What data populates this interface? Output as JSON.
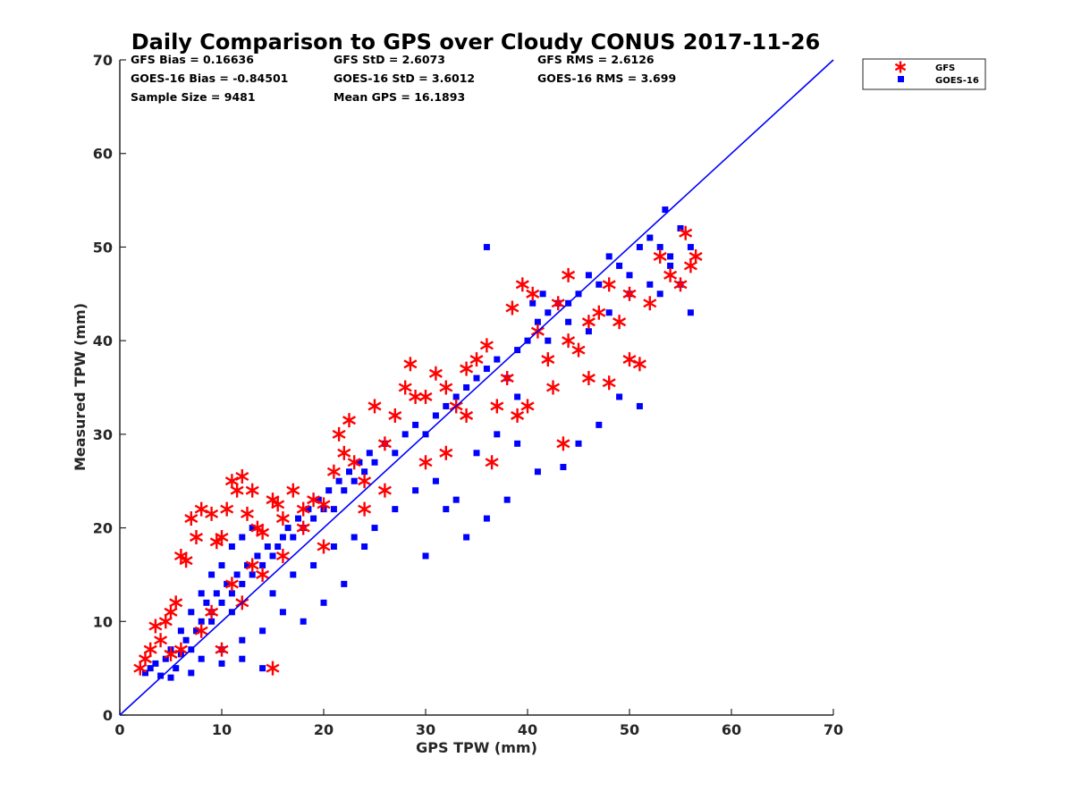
{
  "chart_data": {
    "type": "scatter",
    "title": "Daily Comparison to GPS over Cloudy CONUS 2017-11-26",
    "xlabel": "GPS TPW (mm)",
    "ylabel": "Measured TPW (mm)",
    "xlim": [
      0,
      70
    ],
    "ylim": [
      0,
      70
    ],
    "xticks": [
      "0",
      "10",
      "20",
      "30",
      "40",
      "50",
      "60",
      "70"
    ],
    "yticks": [
      "0",
      "10",
      "20",
      "30",
      "40",
      "50",
      "60",
      "70"
    ],
    "grid": false,
    "legend_position": "top-right, outside axes",
    "stats": [
      {
        "text": "GFS Bias = 0.16636"
      },
      {
        "text": "GFS StD = 2.6073"
      },
      {
        "text": "GFS RMS = 2.6126"
      },
      {
        "text": "GOES-16 Bias = -0.84501"
      },
      {
        "text": "GOES-16 StD = 3.6012"
      },
      {
        "text": "GOES-16 RMS = 3.699"
      },
      {
        "text": "Sample Size = 9481"
      },
      {
        "text": "Mean GPS = 16.1893"
      }
    ],
    "reference_line": {
      "x": [
        0,
        70
      ],
      "y": [
        0,
        70
      ],
      "color": "#0000ff"
    },
    "series": [
      {
        "name": "GFS",
        "marker": "asterisk",
        "color": "#ff0000",
        "points": [
          [
            2,
            5
          ],
          [
            2.5,
            6
          ],
          [
            3,
            7
          ],
          [
            3.5,
            9.5
          ],
          [
            4,
            8
          ],
          [
            4.5,
            10
          ],
          [
            5,
            11
          ],
          [
            5.5,
            12
          ],
          [
            6,
            17
          ],
          [
            6.5,
            16.5
          ],
          [
            7,
            21
          ],
          [
            7.5,
            19
          ],
          [
            8,
            22
          ],
          [
            9,
            21.5
          ],
          [
            9.5,
            18.5
          ],
          [
            10,
            19
          ],
          [
            10.5,
            22
          ],
          [
            11,
            25
          ],
          [
            11.5,
            24
          ],
          [
            12,
            25.5
          ],
          [
            12.5,
            21.5
          ],
          [
            13,
            24
          ],
          [
            13.5,
            20
          ],
          [
            14,
            19.5
          ],
          [
            15,
            23
          ],
          [
            15.5,
            22.5
          ],
          [
            16,
            21
          ],
          [
            17,
            24
          ],
          [
            18,
            22
          ],
          [
            19,
            23
          ],
          [
            20,
            22.5
          ],
          [
            21,
            26
          ],
          [
            21.5,
            30
          ],
          [
            22,
            28
          ],
          [
            22.5,
            31.5
          ],
          [
            23,
            27
          ],
          [
            24,
            25
          ],
          [
            25,
            33
          ],
          [
            26,
            29
          ],
          [
            27,
            32
          ],
          [
            28,
            35
          ],
          [
            28.5,
            37.5
          ],
          [
            29,
            34
          ],
          [
            30,
            34
          ],
          [
            31,
            36.5
          ],
          [
            32,
            35
          ],
          [
            33,
            33
          ],
          [
            34,
            37
          ],
          [
            35,
            38
          ],
          [
            36,
            39.5
          ],
          [
            36.5,
            27
          ],
          [
            37,
            33
          ],
          [
            38,
            36
          ],
          [
            38.5,
            43.5
          ],
          [
            39,
            32
          ],
          [
            39.5,
            46
          ],
          [
            40,
            33
          ],
          [
            40.5,
            45
          ],
          [
            41,
            41
          ],
          [
            42,
            38
          ],
          [
            42.5,
            35
          ],
          [
            43,
            44
          ],
          [
            43.5,
            29
          ],
          [
            44,
            47
          ],
          [
            45,
            39
          ],
          [
            46,
            36
          ],
          [
            47,
            43
          ],
          [
            48,
            35.5
          ],
          [
            49,
            42
          ],
          [
            50,
            38
          ],
          [
            51,
            37.5
          ],
          [
            52,
            44
          ],
          [
            53,
            49
          ],
          [
            54,
            47
          ],
          [
            55,
            46
          ],
          [
            55.5,
            51.5
          ],
          [
            56,
            48
          ],
          [
            56.5,
            49
          ],
          [
            15,
            5
          ],
          [
            10,
            7
          ],
          [
            12,
            12
          ],
          [
            14,
            15
          ],
          [
            16,
            17
          ],
          [
            18,
            20
          ],
          [
            20,
            18
          ],
          [
            24,
            22
          ],
          [
            26,
            24
          ],
          [
            30,
            27
          ],
          [
            32,
            28
          ],
          [
            34,
            32
          ],
          [
            44,
            40
          ],
          [
            46,
            42
          ],
          [
            48,
            46
          ],
          [
            50,
            45
          ],
          [
            8,
            9
          ],
          [
            6,
            7
          ],
          [
            5,
            6.5
          ],
          [
            9,
            11
          ],
          [
            11,
            14
          ],
          [
            13,
            16
          ]
        ]
      },
      {
        "name": "GOES-16",
        "marker": "square",
        "color": "#0000ff",
        "points": [
          [
            2.5,
            4.5
          ],
          [
            3,
            5
          ],
          [
            3.5,
            5.5
          ],
          [
            4,
            4.2
          ],
          [
            4.5,
            6
          ],
          [
            5,
            7
          ],
          [
            5.5,
            5
          ],
          [
            6,
            6.5
          ],
          [
            6.5,
            8
          ],
          [
            7,
            7
          ],
          [
            7.5,
            9
          ],
          [
            8,
            10
          ],
          [
            8.5,
            12
          ],
          [
            9,
            11
          ],
          [
            9.5,
            13
          ],
          [
            10,
            12
          ],
          [
            10.5,
            14
          ],
          [
            11,
            13
          ],
          [
            11.5,
            15
          ],
          [
            12,
            14
          ],
          [
            12.5,
            16
          ],
          [
            13,
            15
          ],
          [
            13.5,
            17
          ],
          [
            14,
            16
          ],
          [
            14.5,
            18
          ],
          [
            15,
            17
          ],
          [
            15.5,
            18
          ],
          [
            16,
            19
          ],
          [
            16.5,
            20
          ],
          [
            17,
            19
          ],
          [
            17.5,
            21
          ],
          [
            18,
            20
          ],
          [
            18.5,
            22
          ],
          [
            19,
            21
          ],
          [
            19.5,
            23
          ],
          [
            20,
            22
          ],
          [
            20.5,
            24
          ],
          [
            21,
            22
          ],
          [
            21.5,
            25
          ],
          [
            22,
            24
          ],
          [
            22.5,
            26
          ],
          [
            23,
            25
          ],
          [
            23.5,
            27
          ],
          [
            24,
            26
          ],
          [
            24.5,
            28
          ],
          [
            25,
            27
          ],
          [
            26,
            29
          ],
          [
            27,
            28
          ],
          [
            28,
            30
          ],
          [
            29,
            31
          ],
          [
            30,
            30
          ],
          [
            31,
            32
          ],
          [
            32,
            33
          ],
          [
            33,
            34
          ],
          [
            34,
            35
          ],
          [
            35,
            36
          ],
          [
            36,
            37
          ],
          [
            37,
            38
          ],
          [
            38,
            36
          ],
          [
            39,
            39
          ],
          [
            40,
            40
          ],
          [
            40.5,
            44
          ],
          [
            41,
            42
          ],
          [
            41.5,
            45
          ],
          [
            42,
            43
          ],
          [
            43,
            44
          ],
          [
            44,
            42
          ],
          [
            45,
            45
          ],
          [
            46,
            47
          ],
          [
            47,
            46
          ],
          [
            48,
            49
          ],
          [
            49,
            48
          ],
          [
            50,
            47
          ],
          [
            51,
            50
          ],
          [
            52,
            51
          ],
          [
            53,
            50
          ],
          [
            53.5,
            54
          ],
          [
            54,
            48
          ],
          [
            55,
            46
          ],
          [
            56,
            43
          ],
          [
            36,
            50
          ],
          [
            38,
            23
          ],
          [
            39,
            29
          ],
          [
            41,
            26
          ],
          [
            43.5,
            26.5
          ],
          [
            45,
            29
          ],
          [
            47,
            31
          ],
          [
            49,
            34
          ],
          [
            51,
            33
          ],
          [
            33,
            23
          ],
          [
            32,
            22
          ],
          [
            30,
            17
          ],
          [
            34,
            19
          ],
          [
            36,
            21
          ],
          [
            24,
            18
          ],
          [
            22,
            14
          ],
          [
            20,
            12
          ],
          [
            18,
            10
          ],
          [
            16,
            11
          ],
          [
            14,
            9
          ],
          [
            12,
            8
          ],
          [
            10,
            7
          ],
          [
            8,
            6
          ],
          [
            14,
            5
          ],
          [
            12,
            6
          ],
          [
            10,
            5.5
          ],
          [
            7,
            4.5
          ],
          [
            5,
            4
          ],
          [
            9,
            10
          ],
          [
            11,
            11
          ],
          [
            6,
            9
          ],
          [
            7,
            11
          ],
          [
            8,
            13
          ],
          [
            9,
            15
          ],
          [
            10,
            16
          ],
          [
            11,
            18
          ],
          [
            12,
            19
          ],
          [
            13,
            20
          ],
          [
            15,
            13
          ],
          [
            17,
            15
          ],
          [
            19,
            16
          ],
          [
            21,
            18
          ],
          [
            23,
            19
          ],
          [
            25,
            20
          ],
          [
            27,
            22
          ],
          [
            29,
            24
          ],
          [
            31,
            25
          ],
          [
            35,
            28
          ],
          [
            37,
            30
          ],
          [
            39,
            34
          ],
          [
            42,
            40
          ],
          [
            44,
            44
          ],
          [
            46,
            41
          ],
          [
            48,
            43
          ],
          [
            50,
            45
          ],
          [
            52,
            46
          ],
          [
            54,
            49
          ],
          [
            55,
            52
          ],
          [
            56,
            50
          ],
          [
            53,
            45
          ]
        ]
      }
    ]
  }
}
